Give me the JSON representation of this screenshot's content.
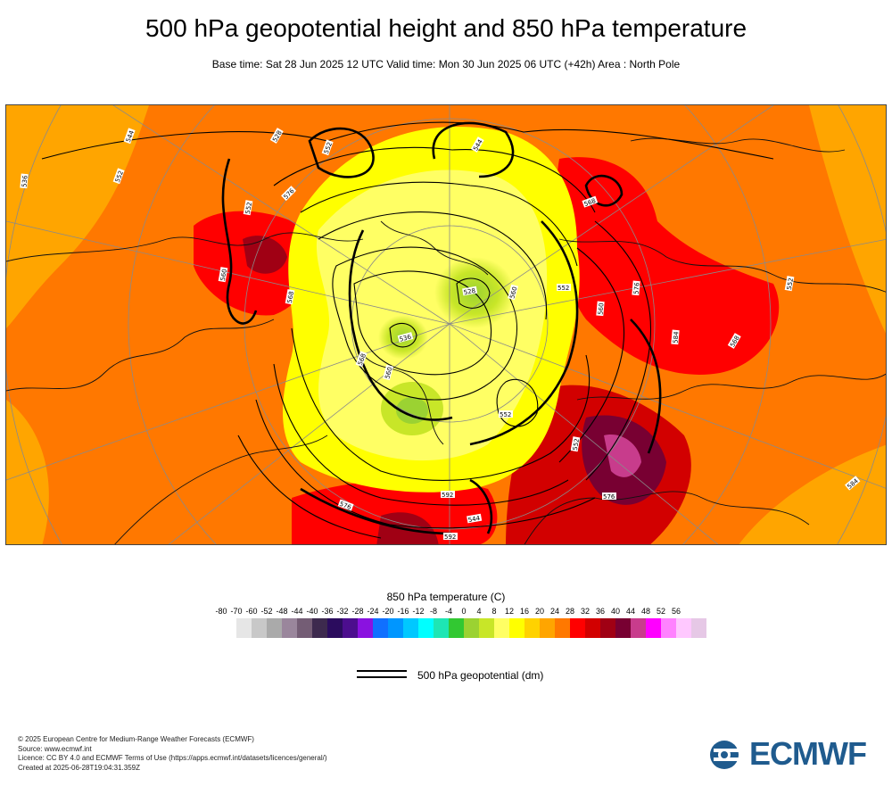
{
  "title": "500 hPa geopotential height and 850 hPa temperature",
  "subtitle": "Base time: Sat 28 Jun 2025 12 UTC Valid time: Mon 30 Jun 2025 06 UTC (+42h) Area : North Pole",
  "legend": {
    "title": "850 hPa temperature (C)",
    "ticks": [
      "-80",
      "-70",
      "-60",
      "-52",
      "-48",
      "-44",
      "-40",
      "-36",
      "-32",
      "-28",
      "-24",
      "-20",
      "-16",
      "-12",
      "-8",
      "-4",
      "0",
      "4",
      "8",
      "12",
      "16",
      "20",
      "24",
      "28",
      "32",
      "36",
      "40",
      "44",
      "48",
      "52",
      "56"
    ],
    "colors": [
      "#e6e6e6",
      "#c8c8c8",
      "#aaaaaa",
      "#9a869c",
      "#745d75",
      "#3d2a4e",
      "#2b0c5e",
      "#4c0e8e",
      "#8a12e0",
      "#1070ff",
      "#0096ff",
      "#00c8ff",
      "#00ffff",
      "#1ee6b4",
      "#32c832",
      "#9bd232",
      "#c8e628",
      "#ffff64",
      "#ffff00",
      "#ffd200",
      "#ffa500",
      "#ff7800",
      "#ff0000",
      "#d20000",
      "#a00014",
      "#780032",
      "#c83c8c",
      "#ff00ff",
      "#ff82ff",
      "#ffc8ff",
      "#e6c8e6"
    ],
    "geopotential_label": "500 hPa geopotential (dm)"
  },
  "map_labels": [
    "552",
    "552",
    "544",
    "576",
    "568",
    "528",
    "560",
    "536",
    "552",
    "560",
    "576",
    "584",
    "552",
    "568",
    "576",
    "592",
    "568",
    "560",
    "552",
    "544",
    "536",
    "528",
    "552",
    "576",
    "544",
    "560",
    "584",
    "568",
    "592",
    "552"
  ],
  "footer": {
    "copyright": "© 2025 European Centre for Medium-Range Weather Forecasts (ECMWF)",
    "source": "Source: www.ecmwf.int",
    "licence": "Licence: CC BY 4.0 and ECMWF Terms of Use (https://apps.ecmwf.int/datasets/licences/general/)",
    "created": "Created at 2025-06-28T19:04:31.359Z"
  },
  "logo_text": "ECMWF",
  "logo_color": "#1f5b8e"
}
